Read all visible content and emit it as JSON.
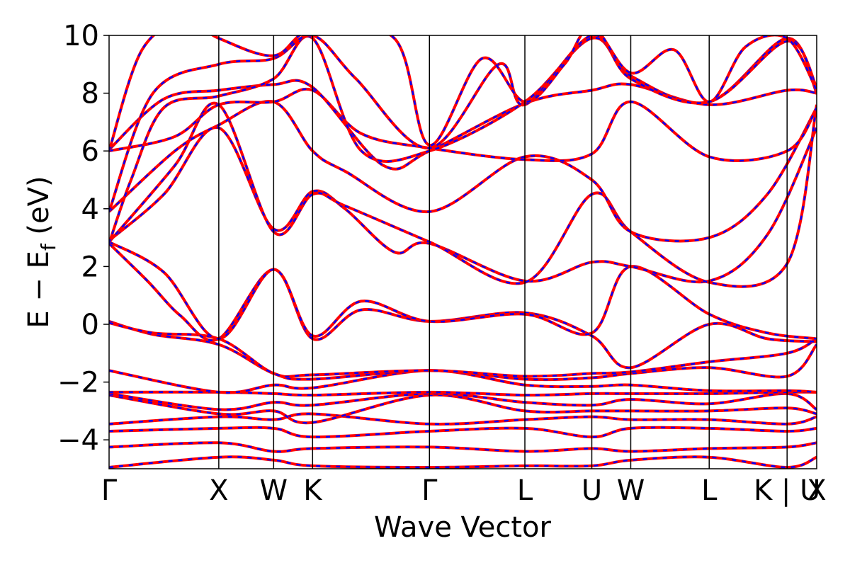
{
  "chart_data": {
    "type": "line",
    "title": "",
    "xlabel": "Wave Vector",
    "ylabel_parts": [
      "E − E",
      "f",
      " (eV)"
    ],
    "ylim": [
      -5,
      10
    ],
    "yticks": [
      -4,
      -2,
      0,
      2,
      4,
      6,
      8,
      10
    ],
    "ytick_labels": [
      "−4",
      "−2",
      "0",
      "2",
      "4",
      "6",
      "8",
      "10"
    ],
    "grid": false,
    "legend": "none",
    "xlim": [
      0,
      12.9
    ],
    "kpoints": [
      {
        "label": "Γ",
        "x": 0
      },
      {
        "label": "X",
        "x": 2.0
      },
      {
        "label": "W",
        "x": 3.0
      },
      {
        "label": "K",
        "x": 3.71
      },
      {
        "label": "Γ",
        "x": 5.84
      },
      {
        "label": "L",
        "x": 7.58
      },
      {
        "label": "U",
        "x": 8.8
      },
      {
        "label": "W",
        "x": 9.51
      },
      {
        "label": "L",
        "x": 10.94
      },
      {
        "label": "K | U",
        "x": 12.36
      },
      {
        "label": "X",
        "x": 12.9
      }
    ],
    "series_colors": {
      "solid": "#ff0000",
      "dashed": "#0000ff"
    },
    "series": [
      {
        "points": [
          [
            0,
            -4.95
          ],
          [
            2.0,
            -4.6
          ],
          [
            3.0,
            -4.7
          ],
          [
            3.71,
            -4.9
          ],
          [
            5.84,
            -4.95
          ],
          [
            7.58,
            -4.9
          ],
          [
            8.8,
            -4.9
          ],
          [
            9.51,
            -4.7
          ],
          [
            10.94,
            -4.6
          ],
          [
            12.36,
            -4.95
          ],
          [
            12.9,
            -4.6
          ]
        ]
      },
      {
        "points": [
          [
            0,
            -4.25
          ],
          [
            2.0,
            -4.1
          ],
          [
            3.0,
            -4.4
          ],
          [
            3.71,
            -4.3
          ],
          [
            5.84,
            -4.25
          ],
          [
            7.58,
            -4.4
          ],
          [
            8.8,
            -4.3
          ],
          [
            9.51,
            -4.4
          ],
          [
            10.94,
            -4.3
          ],
          [
            12.36,
            -4.25
          ],
          [
            12.9,
            -4.1
          ]
        ]
      },
      {
        "points": [
          [
            0,
            -3.7
          ],
          [
            2.0,
            -3.6
          ],
          [
            3.0,
            -3.6
          ],
          [
            3.71,
            -3.9
          ],
          [
            5.84,
            -3.7
          ],
          [
            7.58,
            -3.6
          ],
          [
            8.8,
            -3.9
          ],
          [
            9.51,
            -3.6
          ],
          [
            10.94,
            -3.6
          ],
          [
            12.36,
            -3.7
          ],
          [
            12.9,
            -3.6
          ]
        ]
      },
      {
        "points": [
          [
            0,
            -3.45
          ],
          [
            2.0,
            -3.2
          ],
          [
            3.0,
            -3.3
          ],
          [
            3.71,
            -3.1
          ],
          [
            5.84,
            -3.45
          ],
          [
            7.58,
            -3.3
          ],
          [
            8.8,
            -3.2
          ],
          [
            9.51,
            -3.3
          ],
          [
            10.94,
            -3.3
          ],
          [
            12.36,
            -3.45
          ],
          [
            12.9,
            -3.2
          ]
        ]
      },
      {
        "points": [
          [
            0,
            -2.45
          ],
          [
            2.0,
            -3.1
          ],
          [
            3.0,
            -3.0
          ],
          [
            3.71,
            -3.4
          ],
          [
            5.84,
            -2.45
          ],
          [
            7.58,
            -3.0
          ],
          [
            8.8,
            -3.0
          ],
          [
            9.51,
            -3.0
          ],
          [
            10.94,
            -3.0
          ],
          [
            12.36,
            -2.9
          ],
          [
            12.9,
            -3.1
          ]
        ]
      },
      {
        "points": [
          [
            0,
            -2.4
          ],
          [
            2.0,
            -2.95
          ],
          [
            3.0,
            -2.7
          ],
          [
            3.71,
            -2.8
          ],
          [
            5.84,
            -2.4
          ],
          [
            7.58,
            -2.7
          ],
          [
            8.8,
            -2.8
          ],
          [
            9.51,
            -2.6
          ],
          [
            10.94,
            -2.75
          ],
          [
            12.36,
            -2.4
          ],
          [
            12.9,
            -2.95
          ]
        ]
      },
      {
        "points": [
          [
            0,
            -2.35
          ],
          [
            2.0,
            -2.35
          ],
          [
            3.0,
            -2.4
          ],
          [
            3.71,
            -2.45
          ],
          [
            5.84,
            -2.35
          ],
          [
            7.58,
            -2.45
          ],
          [
            8.8,
            -2.4
          ],
          [
            9.51,
            -2.4
          ],
          [
            10.94,
            -2.4
          ],
          [
            12.36,
            -2.35
          ],
          [
            12.9,
            -2.35
          ]
        ]
      },
      {
        "points": [
          [
            0,
            -1.6
          ],
          [
            2.0,
            -2.35
          ],
          [
            3.0,
            -2.1
          ],
          [
            3.71,
            -2.2
          ],
          [
            5.84,
            -1.6
          ],
          [
            7.58,
            -2.1
          ],
          [
            8.8,
            -2.15
          ],
          [
            9.51,
            -2.1
          ],
          [
            10.94,
            -2.3
          ],
          [
            12.36,
            -2.3
          ],
          [
            12.9,
            -2.35
          ]
        ]
      },
      {
        "points": [
          [
            0,
            0.1
          ],
          [
            0.8,
            -0.35
          ],
          [
            2.0,
            -0.7
          ],
          [
            3.0,
            -1.7
          ],
          [
            3.71,
            -1.9
          ],
          [
            5.84,
            -1.6
          ],
          [
            7.58,
            -1.9
          ],
          [
            8.8,
            -1.85
          ],
          [
            9.51,
            -1.7
          ],
          [
            10.94,
            -1.5
          ],
          [
            12.36,
            -1.8
          ],
          [
            12.9,
            -0.7
          ]
        ]
      },
      {
        "points": [
          [
            0,
            0.05
          ],
          [
            0.8,
            -0.3
          ],
          [
            2.0,
            -0.5
          ],
          [
            3.0,
            -1.7
          ],
          [
            3.71,
            -1.75
          ],
          [
            5.84,
            -1.6
          ],
          [
            7.58,
            -1.8
          ],
          [
            8.8,
            -1.7
          ],
          [
            9.51,
            -1.65
          ],
          [
            10.94,
            -1.3
          ],
          [
            12.36,
            -1.0
          ],
          [
            12.9,
            -0.5
          ]
        ]
      },
      {
        "points": [
          [
            0,
            2.8
          ],
          [
            0.7,
            1.5
          ],
          [
            1.3,
            0.3
          ],
          [
            2.0,
            -0.5
          ],
          [
            3.0,
            1.9
          ],
          [
            3.71,
            -0.5
          ],
          [
            4.6,
            0.5
          ],
          [
            5.84,
            0.1
          ],
          [
            7.58,
            0.4
          ],
          [
            8.8,
            -0.4
          ],
          [
            9.51,
            -1.5
          ],
          [
            10.94,
            0.0
          ],
          [
            12.0,
            -0.5
          ],
          [
            12.9,
            -0.6
          ]
        ]
      },
      {
        "points": [
          [
            0,
            2.85
          ],
          [
            1.0,
            1.8
          ],
          [
            2.0,
            -0.5
          ],
          [
            3.0,
            1.9
          ],
          [
            3.71,
            -0.4
          ],
          [
            4.6,
            0.8
          ],
          [
            5.84,
            0.1
          ],
          [
            7.58,
            0.35
          ],
          [
            8.8,
            -0.3
          ],
          [
            9.51,
            2.0
          ],
          [
            10.94,
            0.35
          ],
          [
            12.0,
            -0.3
          ],
          [
            12.9,
            -0.5
          ]
        ]
      },
      {
        "points": [
          [
            0,
            2.9
          ],
          [
            1.0,
            4.5
          ],
          [
            2.0,
            6.8
          ],
          [
            3.0,
            3.3
          ],
          [
            3.71,
            4.6
          ],
          [
            4.3,
            4.0
          ],
          [
            5.2,
            2.5
          ],
          [
            5.84,
            2.8
          ],
          [
            7.58,
            1.5
          ],
          [
            8.8,
            2.15
          ],
          [
            9.51,
            2.0
          ],
          [
            10.94,
            1.5
          ],
          [
            12.0,
            3.1
          ],
          [
            12.9,
            6.8
          ]
        ]
      },
      {
        "points": [
          [
            0,
            2.85
          ],
          [
            1.2,
            5.5
          ],
          [
            2.0,
            7.6
          ],
          [
            3.0,
            3.2
          ],
          [
            3.71,
            4.5
          ],
          [
            4.3,
            4.1
          ],
          [
            5.84,
            2.85
          ],
          [
            7.58,
            1.45
          ],
          [
            8.8,
            4.5
          ],
          [
            9.51,
            3.2
          ],
          [
            10.94,
            1.45
          ],
          [
            12.36,
            2.1
          ],
          [
            12.9,
            7.6
          ]
        ]
      },
      {
        "points": [
          [
            0,
            3.9
          ],
          [
            1.2,
            6.0
          ],
          [
            2.0,
            6.9
          ],
          [
            3.0,
            7.7
          ],
          [
            3.71,
            6.0
          ],
          [
            4.3,
            5.3
          ],
          [
            5.84,
            3.9
          ],
          [
            7.58,
            5.8
          ],
          [
            8.8,
            5.0
          ],
          [
            9.51,
            3.2
          ],
          [
            10.94,
            3.0
          ],
          [
            12.0,
            4.5
          ],
          [
            12.9,
            7.5
          ]
        ]
      },
      {
        "points": [
          [
            0,
            6.0
          ],
          [
            1.2,
            6.5
          ],
          [
            2.0,
            7.6
          ],
          [
            3.0,
            7.7
          ],
          [
            3.71,
            8.1
          ],
          [
            4.6,
            6.6
          ],
          [
            5.84,
            6.1
          ],
          [
            7.58,
            5.7
          ],
          [
            8.8,
            5.9
          ],
          [
            9.51,
            7.7
          ],
          [
            10.94,
            5.8
          ],
          [
            12.36,
            6.0
          ],
          [
            12.9,
            7.5
          ]
        ]
      },
      {
        "points": [
          [
            0,
            6.05
          ],
          [
            1.0,
            7.8
          ],
          [
            2.0,
            8.1
          ],
          [
            3.0,
            8.3
          ],
          [
            3.71,
            8.2
          ],
          [
            5.0,
            5.5
          ],
          [
            5.84,
            6.0
          ],
          [
            7.58,
            7.65
          ],
          [
            8.8,
            8.1
          ],
          [
            9.51,
            8.3
          ],
          [
            10.94,
            7.6
          ],
          [
            12.36,
            8.1
          ],
          [
            12.9,
            8.0
          ]
        ]
      },
      {
        "points": [
          [
            0,
            2.8
          ],
          [
            0.4,
            5.0
          ],
          [
            1.0,
            7.5
          ],
          [
            2.0,
            7.9
          ],
          [
            3.0,
            8.5
          ],
          [
            3.71,
            9.9
          ],
          [
            4.6,
            6.0
          ],
          [
            5.84,
            6.0
          ],
          [
            7.58,
            7.7
          ],
          [
            8.8,
            9.9
          ],
          [
            9.51,
            8.6
          ],
          [
            10.94,
            7.7
          ],
          [
            12.36,
            9.9
          ],
          [
            12.9,
            8.0
          ]
        ]
      },
      {
        "points": [
          [
            0,
            3.9
          ],
          [
            0.8,
            8.0
          ],
          [
            2.0,
            9.0
          ],
          [
            3.0,
            9.2
          ],
          [
            3.71,
            10.0
          ],
          [
            4.5,
            8.5
          ],
          [
            5.84,
            6.1
          ],
          [
            7.1,
            9.0
          ],
          [
            7.58,
            7.6
          ],
          [
            8.8,
            10.0
          ],
          [
            9.51,
            8.5
          ],
          [
            10.94,
            7.7
          ],
          [
            12.36,
            9.8
          ],
          [
            12.9,
            8.2
          ]
        ]
      },
      {
        "points": [
          [
            0,
            6.0
          ],
          [
            0.6,
            9.5
          ],
          [
            1.4,
            10.5
          ],
          [
            2.0,
            9.9
          ],
          [
            3.0,
            9.3
          ],
          [
            3.71,
            10.2
          ],
          [
            5.2,
            9.9
          ],
          [
            5.84,
            6.2
          ],
          [
            6.8,
            9.2
          ],
          [
            7.58,
            7.7
          ],
          [
            8.3,
            9.0
          ],
          [
            8.8,
            10.3
          ],
          [
            9.51,
            8.7
          ],
          [
            10.3,
            9.5
          ],
          [
            10.94,
            7.7
          ],
          [
            11.6,
            9.6
          ],
          [
            12.36,
            9.9
          ],
          [
            12.9,
            8.1
          ]
        ]
      }
    ]
  }
}
